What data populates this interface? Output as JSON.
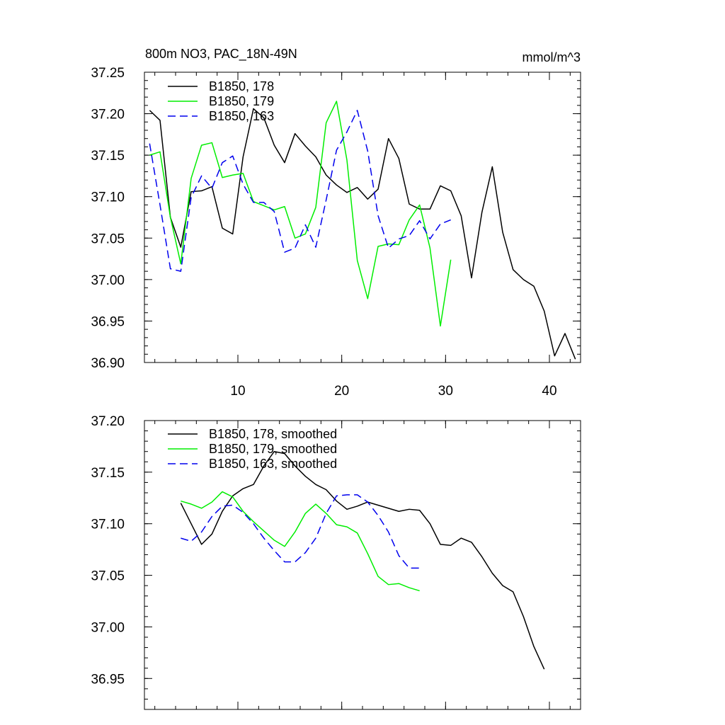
{
  "figure": {
    "title_left": "800m NO3, PAC_18N-49N",
    "title_right": "mmol/m^3"
  },
  "colors": {
    "black": "#000000",
    "green": "#00ee00",
    "blue": "#0000ee"
  },
  "chart_data": [
    {
      "type": "line",
      "title": "800m NO3, PAC_18N-49N",
      "units": "mmol/m^3",
      "xlim": [
        1,
        43
      ],
      "ylim": [
        36.9,
        37.25
      ],
      "x_ticks": [
        10,
        20,
        30,
        40
      ],
      "x_tick_labels": [
        "10",
        "20",
        "30",
        "40"
      ],
      "y_ticks": [
        36.9,
        36.95,
        37.0,
        37.05,
        37.1,
        37.15,
        37.2,
        37.25
      ],
      "y_tick_labels": [
        "36.90",
        "36.95",
        "37.00",
        "37.05",
        "37.10",
        "37.15",
        "37.20",
        "37.25"
      ],
      "legend_position": "top-left",
      "series": [
        {
          "name": "B1850, 178",
          "color": "#000000",
          "dash": "solid",
          "x": [
            1.5,
            2.5,
            3.5,
            4.5,
            5.5,
            6.5,
            7.5,
            8.5,
            9.5,
            10.5,
            11.5,
            12.5,
            13.5,
            14.5,
            15.5,
            16.5,
            17.5,
            18.5,
            19.5,
            20.5,
            21.5,
            22.5,
            23.5,
            24.5,
            25.5,
            26.5,
            27.5,
            28.5,
            29.5,
            30.5,
            31.5,
            32.5,
            33.5,
            34.5,
            35.5,
            36.5,
            37.5,
            38.5,
            39.5,
            40.5,
            41.5,
            42.5
          ],
          "values": [
            37.204,
            37.192,
            37.075,
            37.039,
            37.106,
            37.107,
            37.112,
            37.062,
            37.055,
            37.148,
            37.206,
            37.195,
            37.162,
            37.141,
            37.176,
            37.161,
            37.148,
            37.126,
            37.114,
            37.105,
            37.111,
            37.097,
            37.109,
            37.17,
            37.146,
            37.091,
            37.085,
            37.085,
            37.113,
            37.107,
            37.077,
            37.002,
            37.081,
            37.136,
            37.057,
            37.012,
            37.0,
            36.992,
            36.962,
            36.908,
            36.935,
            36.904
          ]
        },
        {
          "name": "B1850, 179",
          "color": "#00ee00",
          "dash": "solid",
          "x": [
            1.5,
            2.5,
            3.5,
            4.5,
            5.5,
            6.5,
            7.5,
            8.5,
            9.5,
            10.5,
            11.5,
            12.5,
            13.5,
            14.5,
            15.5,
            16.5,
            17.5,
            18.5,
            19.5,
            20.5,
            21.5,
            22.5,
            23.5,
            24.5,
            25.5,
            26.5,
            27.5,
            28.5,
            29.5,
            30.5
          ],
          "values": [
            37.15,
            37.154,
            37.075,
            37.019,
            37.122,
            37.162,
            37.165,
            37.123,
            37.126,
            37.128,
            37.094,
            37.089,
            37.084,
            37.088,
            37.05,
            37.055,
            37.087,
            37.189,
            37.215,
            37.144,
            37.023,
            36.977,
            37.04,
            37.043,
            37.042,
            37.072,
            37.09,
            37.038,
            36.944,
            37.024
          ]
        },
        {
          "name": "B1850, 163",
          "color": "#0000ee",
          "dash": "dashed",
          "x": [
            1.5,
            2.5,
            3.5,
            4.5,
            5.5,
            6.5,
            7.5,
            8.5,
            9.5,
            10.5,
            11.5,
            12.5,
            13.5,
            14.5,
            15.5,
            16.5,
            17.5,
            18.5,
            19.5,
            20.5,
            21.5,
            22.5,
            23.5,
            24.5,
            25.5,
            26.5,
            27.5,
            28.5,
            29.5,
            30.5
          ],
          "values": [
            37.164,
            37.09,
            37.013,
            37.01,
            37.099,
            37.125,
            37.11,
            37.141,
            37.149,
            37.115,
            37.093,
            37.093,
            37.082,
            37.033,
            37.038,
            37.066,
            37.039,
            37.096,
            37.156,
            37.178,
            37.204,
            37.155,
            37.077,
            37.038,
            37.049,
            37.053,
            37.071,
            37.049,
            37.067,
            37.072
          ]
        }
      ]
    },
    {
      "type": "line",
      "xlim": [
        1,
        43
      ],
      "ylim": [
        36.92,
        37.2
      ],
      "x_ticks": [
        10,
        20,
        30,
        40
      ],
      "y_ticks": [
        36.95,
        37.0,
        37.05,
        37.1,
        37.15,
        37.2
      ],
      "y_tick_labels": [
        "36.95",
        "37.00",
        "37.05",
        "37.10",
        "37.15",
        "37.20"
      ],
      "legend_position": "top-left",
      "series": [
        {
          "name": "B1850, 178, smoothed",
          "color": "#000000",
          "dash": "solid",
          "x": [
            4.5,
            5.5,
            6.5,
            7.5,
            8.5,
            9.5,
            10.5,
            11.5,
            12.5,
            13.5,
            14.5,
            15.5,
            16.5,
            17.5,
            18.5,
            19.5,
            20.5,
            21.5,
            22.5,
            23.5,
            24.5,
            25.5,
            26.5,
            27.5,
            28.5,
            29.5,
            30.5,
            31.5,
            32.5,
            33.5,
            34.5,
            35.5,
            36.5,
            37.5,
            38.5,
            39.5
          ],
          "values": [
            37.12,
            37.1,
            37.08,
            37.09,
            37.112,
            37.127,
            37.134,
            37.138,
            37.156,
            37.17,
            37.168,
            37.156,
            37.146,
            37.138,
            37.133,
            37.122,
            37.114,
            37.117,
            37.121,
            37.118,
            37.115,
            37.112,
            37.114,
            37.113,
            37.1,
            37.08,
            37.079,
            37.086,
            37.082,
            37.068,
            37.052,
            37.04,
            37.034,
            37.01,
            36.981,
            36.959
          ]
        },
        {
          "name": "B1850, 179, smoothed",
          "color": "#00ee00",
          "dash": "solid",
          "x": [
            4.5,
            5.5,
            6.5,
            7.5,
            8.5,
            9.5,
            10.5,
            11.5,
            12.5,
            13.5,
            14.5,
            15.5,
            16.5,
            17.5,
            18.5,
            19.5,
            20.5,
            21.5,
            22.5,
            23.5,
            24.5,
            25.5,
            26.5,
            27.5
          ],
          "values": [
            37.122,
            37.119,
            37.115,
            37.121,
            37.131,
            37.126,
            37.112,
            37.102,
            37.093,
            37.084,
            37.078,
            37.092,
            37.11,
            37.119,
            37.11,
            37.099,
            37.097,
            37.091,
            37.071,
            37.049,
            37.041,
            37.042,
            37.038,
            37.035
          ]
        },
        {
          "name": "B1850, 163, smoothed",
          "color": "#0000ee",
          "dash": "dashed",
          "x": [
            4.5,
            5.5,
            6.5,
            7.5,
            8.5,
            9.5,
            10.5,
            11.5,
            12.5,
            13.5,
            14.5,
            15.5,
            16.5,
            17.5,
            18.5,
            19.5,
            20.5,
            21.5,
            22.5,
            23.5,
            24.5,
            25.5,
            26.5,
            27.5
          ],
          "values": [
            37.086,
            37.083,
            37.092,
            37.107,
            37.117,
            37.118,
            37.111,
            37.1,
            37.086,
            37.074,
            37.063,
            37.063,
            37.072,
            37.086,
            37.11,
            37.127,
            37.128,
            37.128,
            37.121,
            37.108,
            37.092,
            37.069,
            37.057,
            37.057
          ]
        }
      ]
    }
  ]
}
